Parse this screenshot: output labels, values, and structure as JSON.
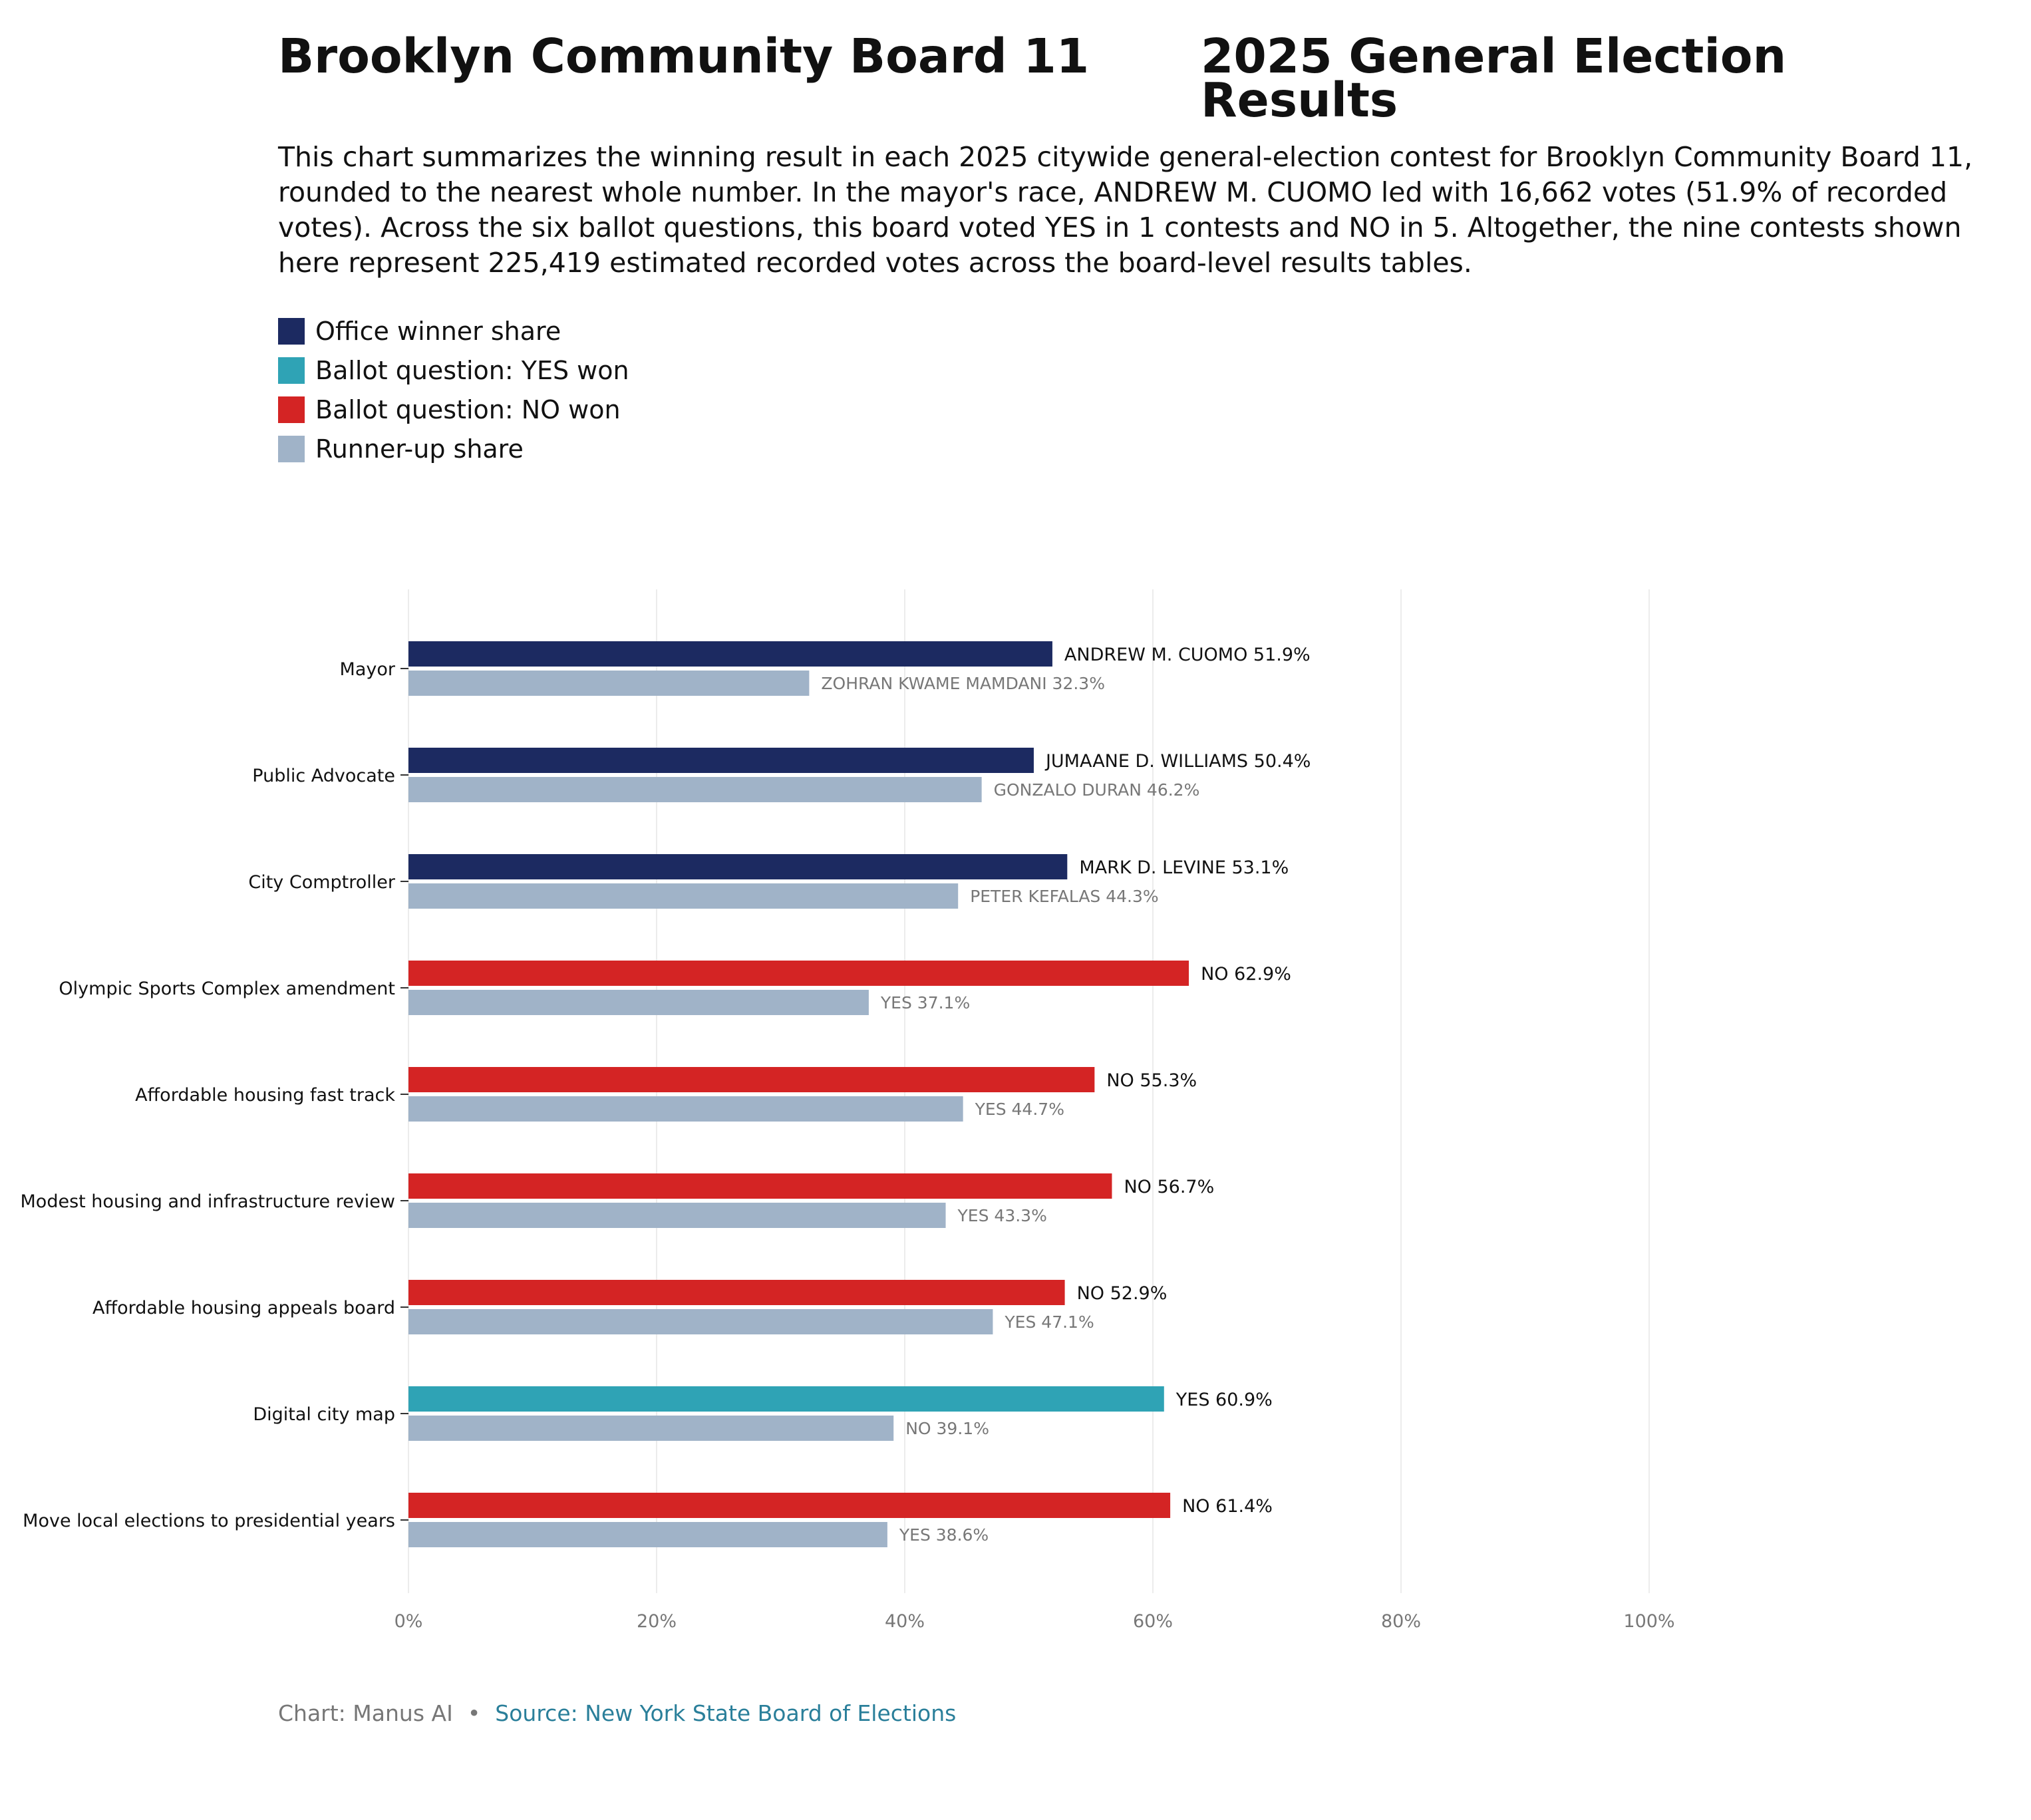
{
  "title_left": "Brooklyn Community Board 11",
  "title_right": "2025 General Election Results",
  "description": "This chart summarizes the winning result in each 2025 citywide general-election contest for Brooklyn Community Board 11, rounded to the nearest whole number. In the mayor's race, ANDREW M. CUOMO led with 16,662 votes (51.9% of recorded votes). Across the six ballot questions, this board voted YES in 1 contests and NO in 5. Altogether, the nine contests shown here represent 225,419 estimated recorded votes across the board-level results tables.",
  "legend": [
    {
      "label": "Office winner share",
      "color": "#1c2a61"
    },
    {
      "label": "Ballot question: YES won",
      "color": "#2fa3b5"
    },
    {
      "label": "Ballot question: NO won",
      "color": "#d42424"
    },
    {
      "label": "Runner-up share",
      "color": "#a0b3c8"
    }
  ],
  "footer": {
    "credit": "Chart: Manus AI",
    "separator": "•",
    "source": "Source: New York State Board of Elections",
    "source_color": "#2a7f9a"
  },
  "chart_data": {
    "type": "bar",
    "orientation": "horizontal",
    "xlim": [
      0,
      100
    ],
    "x_ticks": [
      "0%",
      "20%",
      "40%",
      "60%",
      "80%",
      "100%"
    ],
    "x_tick_values": [
      0,
      20,
      40,
      60,
      80,
      100
    ],
    "grid": "vertical",
    "colors": {
      "office_winner": "#1c2a61",
      "yes_won": "#2fa3b5",
      "no_won": "#d42424",
      "runner_up": "#a0b3c8"
    },
    "categories": [
      {
        "label": "Mayor",
        "kind": "office_winner",
        "winner": {
          "label": "ANDREW M. CUOMO 51.9%",
          "value": 51.9
        },
        "runner_up": {
          "label": "ZOHRAN KWAME MAMDANI 32.3%",
          "value": 32.3
        }
      },
      {
        "label": "Public Advocate",
        "kind": "office_winner",
        "winner": {
          "label": "JUMAANE D. WILLIAMS 50.4%",
          "value": 50.4
        },
        "runner_up": {
          "label": "GONZALO DURAN 46.2%",
          "value": 46.2
        }
      },
      {
        "label": "City Comptroller",
        "kind": "office_winner",
        "winner": {
          "label": "MARK D. LEVINE 53.1%",
          "value": 53.1
        },
        "runner_up": {
          "label": "PETER KEFALAS 44.3%",
          "value": 44.3
        }
      },
      {
        "label": "Olympic Sports Complex amendment",
        "kind": "no_won",
        "winner": {
          "label": "NO 62.9%",
          "value": 62.9
        },
        "runner_up": {
          "label": "YES 37.1%",
          "value": 37.1
        }
      },
      {
        "label": "Affordable housing fast track",
        "kind": "no_won",
        "winner": {
          "label": "NO 55.3%",
          "value": 55.3
        },
        "runner_up": {
          "label": "YES 44.7%",
          "value": 44.7
        }
      },
      {
        "label": "Modest housing and infrastructure review",
        "kind": "no_won",
        "winner": {
          "label": "NO 56.7%",
          "value": 56.7
        },
        "runner_up": {
          "label": "YES 43.3%",
          "value": 43.3
        }
      },
      {
        "label": "Affordable housing appeals board",
        "kind": "no_won",
        "winner": {
          "label": "NO 52.9%",
          "value": 52.9
        },
        "runner_up": {
          "label": "YES 47.1%",
          "value": 47.1
        }
      },
      {
        "label": "Digital city map",
        "kind": "yes_won",
        "winner": {
          "label": "YES 60.9%",
          "value": 60.9
        },
        "runner_up": {
          "label": "NO 39.1%",
          "value": 39.1
        }
      },
      {
        "label": "Move local elections to presidential years",
        "kind": "no_won",
        "winner": {
          "label": "NO 61.4%",
          "value": 61.4
        },
        "runner_up": {
          "label": "YES 38.6%",
          "value": 38.6
        }
      }
    ]
  }
}
